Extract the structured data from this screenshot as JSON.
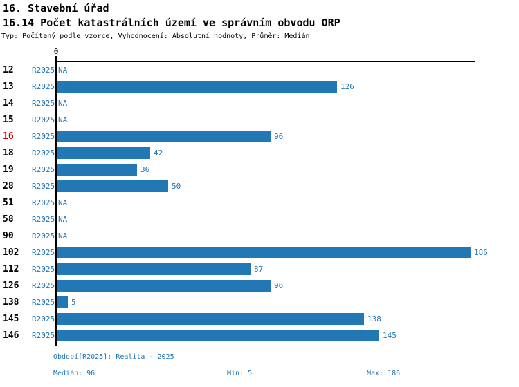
{
  "header": {
    "title": "16. Stavební úřad",
    "subtitle": "16.14 Počet katastrálních území ve správním obvodu ORP",
    "meta": "Typ: Počítaný podle vzorce, Vyhodnocení: Absolutní hodnoty, Průměr: Medián"
  },
  "chart_data": {
    "type": "bar",
    "orientation": "horizontal",
    "title": "16.14 Počet katastrálních území ve správním obvodu ORP",
    "categories": [
      "12",
      "13",
      "14",
      "15",
      "16",
      "18",
      "19",
      "28",
      "51",
      "58",
      "90",
      "102",
      "112",
      "126",
      "138",
      "145",
      "146"
    ],
    "series": [
      {
        "name": "R2025",
        "values": [
          null,
          126,
          null,
          null,
          96,
          42,
          36,
          50,
          null,
          null,
          null,
          186,
          87,
          96,
          5,
          138,
          145
        ]
      }
    ],
    "period_label": "R2025",
    "na_label": "NA",
    "zero_tick_label": "0",
    "xlim": [
      0,
      186
    ],
    "median": 96,
    "min": 5,
    "max": 186,
    "highlighted_category": "16",
    "grid": "off",
    "legend": "none",
    "bar_color": "#2277b5",
    "median_line_color": "#2277b5",
    "highlight_color": "#d40000"
  },
  "footer": {
    "period_info": "Období[R2025]: Realita - 2025",
    "median_label": "Medián: 96",
    "min_label": "Min: 5",
    "max_label": "Max: 186"
  }
}
